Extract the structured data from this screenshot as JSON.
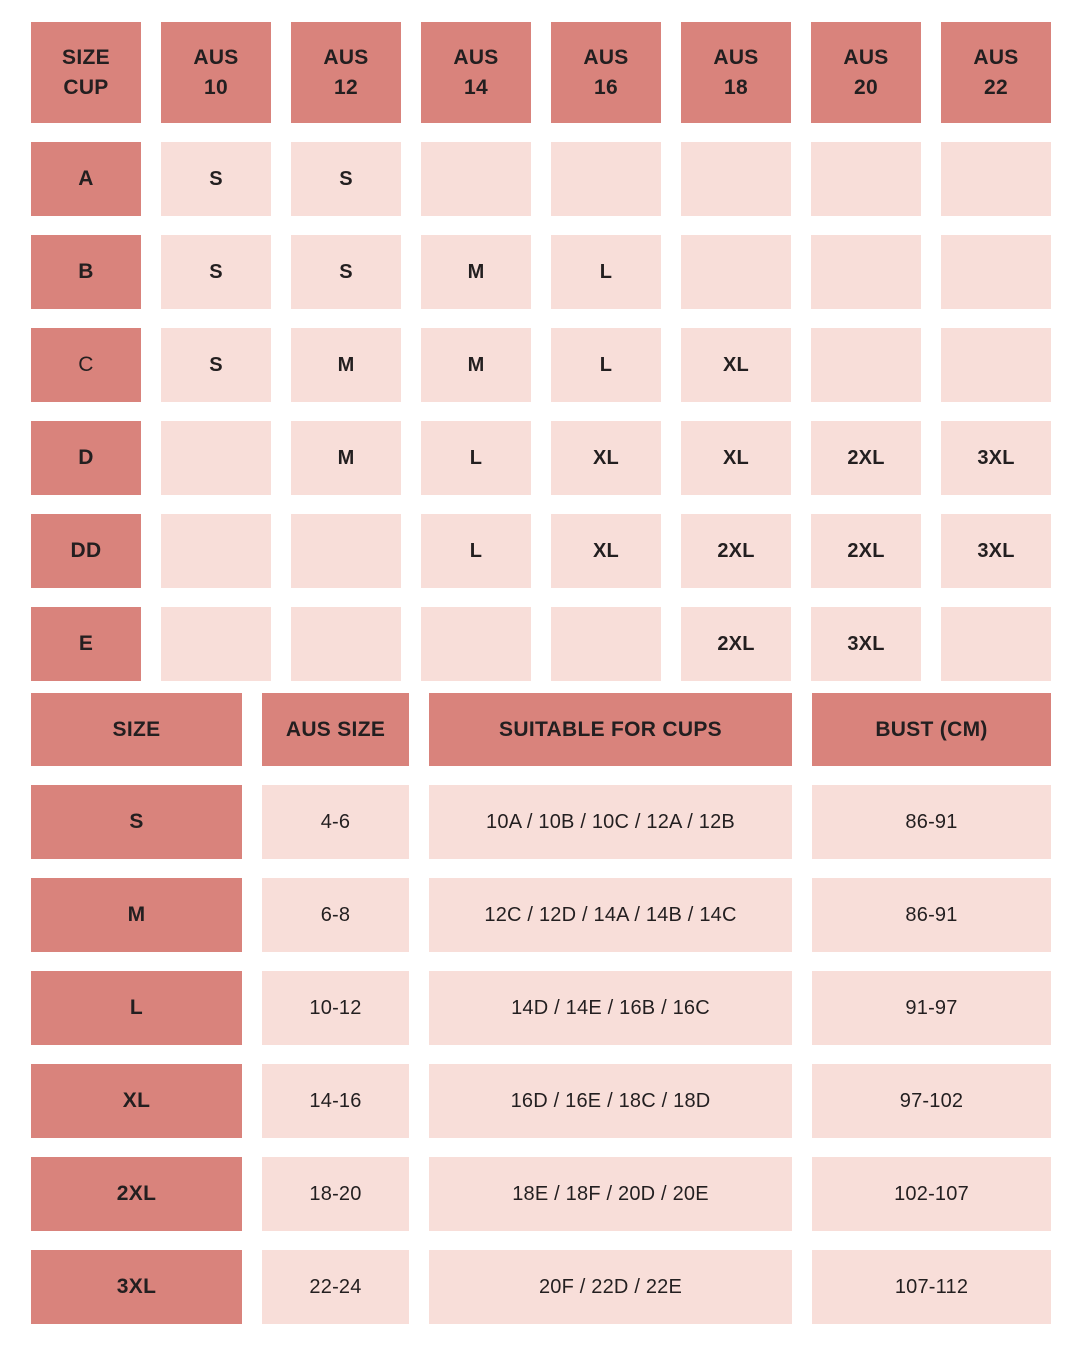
{
  "colors": {
    "header_bg": "#D9837C",
    "cell_bg": "#F8DED9",
    "text": "#231F20",
    "page_bg": "#FFFFFF"
  },
  "ui": {
    "cup_table_corner_label": "SIZE\nCUP",
    "cup_table_columns": [
      "AUS\n10",
      "AUS\n12",
      "AUS\n14",
      "AUS\n16",
      "AUS\n18",
      "AUS\n20",
      "AUS\n22"
    ]
  },
  "chart_data": [
    {
      "type": "table",
      "title": "",
      "columns": [
        "SIZE CUP",
        "AUS 10",
        "AUS 12",
        "AUS 14",
        "AUS 16",
        "AUS 18",
        "AUS 20",
        "AUS 22"
      ],
      "rows": [
        [
          "A",
          "S",
          "S",
          "",
          "",
          "",
          "",
          ""
        ],
        [
          "B",
          "S",
          "S",
          "M",
          "L",
          "",
          "",
          ""
        ],
        [
          "C",
          "S",
          "M",
          "M",
          "L",
          "XL",
          "",
          ""
        ],
        [
          "D",
          "",
          "M",
          "L",
          "XL",
          "XL",
          "2XL",
          "3XL"
        ],
        [
          "DD",
          "",
          "",
          "L",
          "XL",
          "2XL",
          "2XL",
          "3XL"
        ],
        [
          "E",
          "",
          "",
          "",
          "",
          "2XL",
          "3XL",
          ""
        ]
      ]
    },
    {
      "type": "table",
      "title": "",
      "columns": [
        "SIZE",
        "AUS SIZE",
        "SUITABLE FOR CUPS",
        "BUST (CM)"
      ],
      "rows": [
        [
          "S",
          "4-6",
          "10A / 10B / 10C / 12A / 12B",
          "86-91"
        ],
        [
          "M",
          "6-8",
          "12C / 12D / 14A / 14B / 14C",
          "86-91"
        ],
        [
          "L",
          "10-12",
          "14D / 14E / 16B / 16C",
          "91-97"
        ],
        [
          "XL",
          "14-16",
          "16D / 16E / 18C / 18D",
          "97-102"
        ],
        [
          "2XL",
          "18-20",
          "18E / 18F / 20D / 20E",
          "102-107"
        ],
        [
          "3XL",
          "22-24",
          "20F / 22D / 22E",
          "107-112"
        ]
      ]
    }
  ]
}
